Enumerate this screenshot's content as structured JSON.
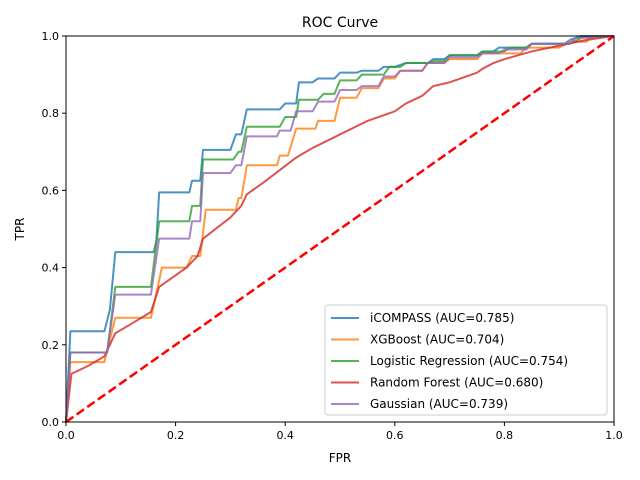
{
  "chart_data": {
    "type": "line",
    "title": "ROC Curve",
    "xlabel": "FPR",
    "ylabel": "TPR",
    "xlim": [
      0,
      1
    ],
    "ylim": [
      0,
      1
    ],
    "xticks": [
      "0.0",
      "0.2",
      "0.4",
      "0.6",
      "0.8",
      "1.0"
    ],
    "yticks": [
      "0.0",
      "0.2",
      "0.4",
      "0.6",
      "0.8",
      "1.0"
    ],
    "grid": false,
    "legend_position": "lower-right",
    "series": [
      {
        "name": "iCOMPASS (AUC=0.785)",
        "color": "#1f77b4",
        "points": [
          [
            0,
            0
          ],
          [
            0.008,
            0.235
          ],
          [
            0.07,
            0.235
          ],
          [
            0.08,
            0.29
          ],
          [
            0.09,
            0.44
          ],
          [
            0.16,
            0.44
          ],
          [
            0.165,
            0.47
          ],
          [
            0.17,
            0.595
          ],
          [
            0.225,
            0.595
          ],
          [
            0.23,
            0.625
          ],
          [
            0.245,
            0.625
          ],
          [
            0.25,
            0.705
          ],
          [
            0.3,
            0.705
          ],
          [
            0.31,
            0.745
          ],
          [
            0.32,
            0.745
          ],
          [
            0.33,
            0.81
          ],
          [
            0.39,
            0.81
          ],
          [
            0.4,
            0.825
          ],
          [
            0.42,
            0.825
          ],
          [
            0.425,
            0.88
          ],
          [
            0.45,
            0.88
          ],
          [
            0.46,
            0.89
          ],
          [
            0.49,
            0.89
          ],
          [
            0.5,
            0.905
          ],
          [
            0.53,
            0.905
          ],
          [
            0.54,
            0.91
          ],
          [
            0.57,
            0.91
          ],
          [
            0.58,
            0.92
          ],
          [
            0.6,
            0.92
          ],
          [
            0.62,
            0.93
          ],
          [
            0.66,
            0.93
          ],
          [
            0.67,
            0.94
          ],
          [
            0.69,
            0.94
          ],
          [
            0.7,
            0.95
          ],
          [
            0.75,
            0.95
          ],
          [
            0.76,
            0.96
          ],
          [
            0.78,
            0.96
          ],
          [
            0.79,
            0.97
          ],
          [
            0.84,
            0.97
          ],
          [
            0.85,
            0.98
          ],
          [
            0.91,
            0.98
          ],
          [
            0.92,
            0.99
          ],
          [
            0.94,
            1.0
          ],
          [
            1,
            1
          ]
        ]
      },
      {
        "name": "XGBoost (AUC=0.704)",
        "color": "#ff7f0e",
        "points": [
          [
            0,
            0
          ],
          [
            0.008,
            0.155
          ],
          [
            0.07,
            0.155
          ],
          [
            0.09,
            0.27
          ],
          [
            0.155,
            0.27
          ],
          [
            0.175,
            0.4
          ],
          [
            0.22,
            0.4
          ],
          [
            0.23,
            0.43
          ],
          [
            0.245,
            0.43
          ],
          [
            0.255,
            0.55
          ],
          [
            0.31,
            0.55
          ],
          [
            0.315,
            0.58
          ],
          [
            0.32,
            0.58
          ],
          [
            0.33,
            0.665
          ],
          [
            0.385,
            0.665
          ],
          [
            0.39,
            0.69
          ],
          [
            0.405,
            0.69
          ],
          [
            0.42,
            0.76
          ],
          [
            0.455,
            0.76
          ],
          [
            0.46,
            0.78
          ],
          [
            0.49,
            0.78
          ],
          [
            0.5,
            0.84
          ],
          [
            0.53,
            0.84
          ],
          [
            0.54,
            0.865
          ],
          [
            0.57,
            0.865
          ],
          [
            0.58,
            0.89
          ],
          [
            0.6,
            0.89
          ],
          [
            0.61,
            0.91
          ],
          [
            0.65,
            0.91
          ],
          [
            0.66,
            0.93
          ],
          [
            0.69,
            0.93
          ],
          [
            0.7,
            0.94
          ],
          [
            0.75,
            0.94
          ],
          [
            0.76,
            0.955
          ],
          [
            0.83,
            0.955
          ],
          [
            0.84,
            0.97
          ],
          [
            0.9,
            0.97
          ],
          [
            0.92,
            0.985
          ],
          [
            0.95,
            0.985
          ],
          [
            0.96,
            1.0
          ],
          [
            1,
            1
          ]
        ]
      },
      {
        "name": "Logistic Regression (AUC=0.754)",
        "color": "#2ca02c",
        "points": [
          [
            0,
            0
          ],
          [
            0.008,
            0.18
          ],
          [
            0.075,
            0.18
          ],
          [
            0.09,
            0.35
          ],
          [
            0.155,
            0.35
          ],
          [
            0.17,
            0.52
          ],
          [
            0.225,
            0.52
          ],
          [
            0.23,
            0.56
          ],
          [
            0.245,
            0.56
          ],
          [
            0.25,
            0.68
          ],
          [
            0.305,
            0.68
          ],
          [
            0.315,
            0.7
          ],
          [
            0.32,
            0.7
          ],
          [
            0.33,
            0.765
          ],
          [
            0.39,
            0.765
          ],
          [
            0.4,
            0.79
          ],
          [
            0.42,
            0.79
          ],
          [
            0.425,
            0.835
          ],
          [
            0.46,
            0.835
          ],
          [
            0.47,
            0.85
          ],
          [
            0.49,
            0.85
          ],
          [
            0.5,
            0.885
          ],
          [
            0.53,
            0.885
          ],
          [
            0.54,
            0.9
          ],
          [
            0.58,
            0.9
          ],
          [
            0.59,
            0.92
          ],
          [
            0.61,
            0.92
          ],
          [
            0.62,
            0.93
          ],
          [
            0.66,
            0.93
          ],
          [
            0.67,
            0.935
          ],
          [
            0.69,
            0.935
          ],
          [
            0.7,
            0.95
          ],
          [
            0.75,
            0.95
          ],
          [
            0.76,
            0.96
          ],
          [
            0.8,
            0.96
          ],
          [
            0.81,
            0.97
          ],
          [
            0.84,
            0.97
          ],
          [
            0.85,
            0.98
          ],
          [
            0.92,
            0.98
          ],
          [
            0.94,
            0.995
          ],
          [
            1,
            1
          ]
        ]
      },
      {
        "name": "Random Forest (AUC=0.680)",
        "color": "#d62728",
        "points": [
          [
            0,
            0
          ],
          [
            0.01,
            0.125
          ],
          [
            0.04,
            0.145
          ],
          [
            0.07,
            0.17
          ],
          [
            0.09,
            0.23
          ],
          [
            0.12,
            0.255
          ],
          [
            0.155,
            0.285
          ],
          [
            0.17,
            0.35
          ],
          [
            0.2,
            0.38
          ],
          [
            0.22,
            0.4
          ],
          [
            0.24,
            0.43
          ],
          [
            0.25,
            0.475
          ],
          [
            0.3,
            0.53
          ],
          [
            0.32,
            0.56
          ],
          [
            0.33,
            0.59
          ],
          [
            0.36,
            0.62
          ],
          [
            0.42,
            0.685
          ],
          [
            0.45,
            0.71
          ],
          [
            0.5,
            0.745
          ],
          [
            0.55,
            0.78
          ],
          [
            0.6,
            0.805
          ],
          [
            0.62,
            0.825
          ],
          [
            0.65,
            0.845
          ],
          [
            0.67,
            0.87
          ],
          [
            0.7,
            0.88
          ],
          [
            0.75,
            0.905
          ],
          [
            0.76,
            0.915
          ],
          [
            0.78,
            0.93
          ],
          [
            0.8,
            0.94
          ],
          [
            0.85,
            0.96
          ],
          [
            0.9,
            0.975
          ],
          [
            0.95,
            0.99
          ],
          [
            1,
            1
          ]
        ]
      },
      {
        "name": "Gaussian (AUC=0.739)",
        "color": "#9467bd",
        "points": [
          [
            0,
            0
          ],
          [
            0.008,
            0.18
          ],
          [
            0.075,
            0.18
          ],
          [
            0.09,
            0.33
          ],
          [
            0.155,
            0.33
          ],
          [
            0.17,
            0.475
          ],
          [
            0.225,
            0.475
          ],
          [
            0.23,
            0.52
          ],
          [
            0.245,
            0.52
          ],
          [
            0.25,
            0.645
          ],
          [
            0.3,
            0.645
          ],
          [
            0.31,
            0.665
          ],
          [
            0.32,
            0.665
          ],
          [
            0.33,
            0.74
          ],
          [
            0.385,
            0.74
          ],
          [
            0.39,
            0.755
          ],
          [
            0.41,
            0.755
          ],
          [
            0.42,
            0.805
          ],
          [
            0.45,
            0.805
          ],
          [
            0.46,
            0.83
          ],
          [
            0.49,
            0.83
          ],
          [
            0.5,
            0.86
          ],
          [
            0.53,
            0.86
          ],
          [
            0.54,
            0.87
          ],
          [
            0.57,
            0.87
          ],
          [
            0.58,
            0.895
          ],
          [
            0.6,
            0.895
          ],
          [
            0.61,
            0.91
          ],
          [
            0.65,
            0.91
          ],
          [
            0.66,
            0.93
          ],
          [
            0.69,
            0.93
          ],
          [
            0.7,
            0.945
          ],
          [
            0.75,
            0.945
          ],
          [
            0.76,
            0.955
          ],
          [
            0.79,
            0.955
          ],
          [
            0.8,
            0.965
          ],
          [
            0.84,
            0.965
          ],
          [
            0.85,
            0.98
          ],
          [
            0.92,
            0.98
          ],
          [
            0.93,
            0.995
          ],
          [
            1,
            1
          ]
        ]
      }
    ],
    "reference_line": {
      "points": [
        [
          0,
          0
        ],
        [
          1,
          1
        ]
      ],
      "color": "#ff0000",
      "style": "dashed"
    }
  }
}
